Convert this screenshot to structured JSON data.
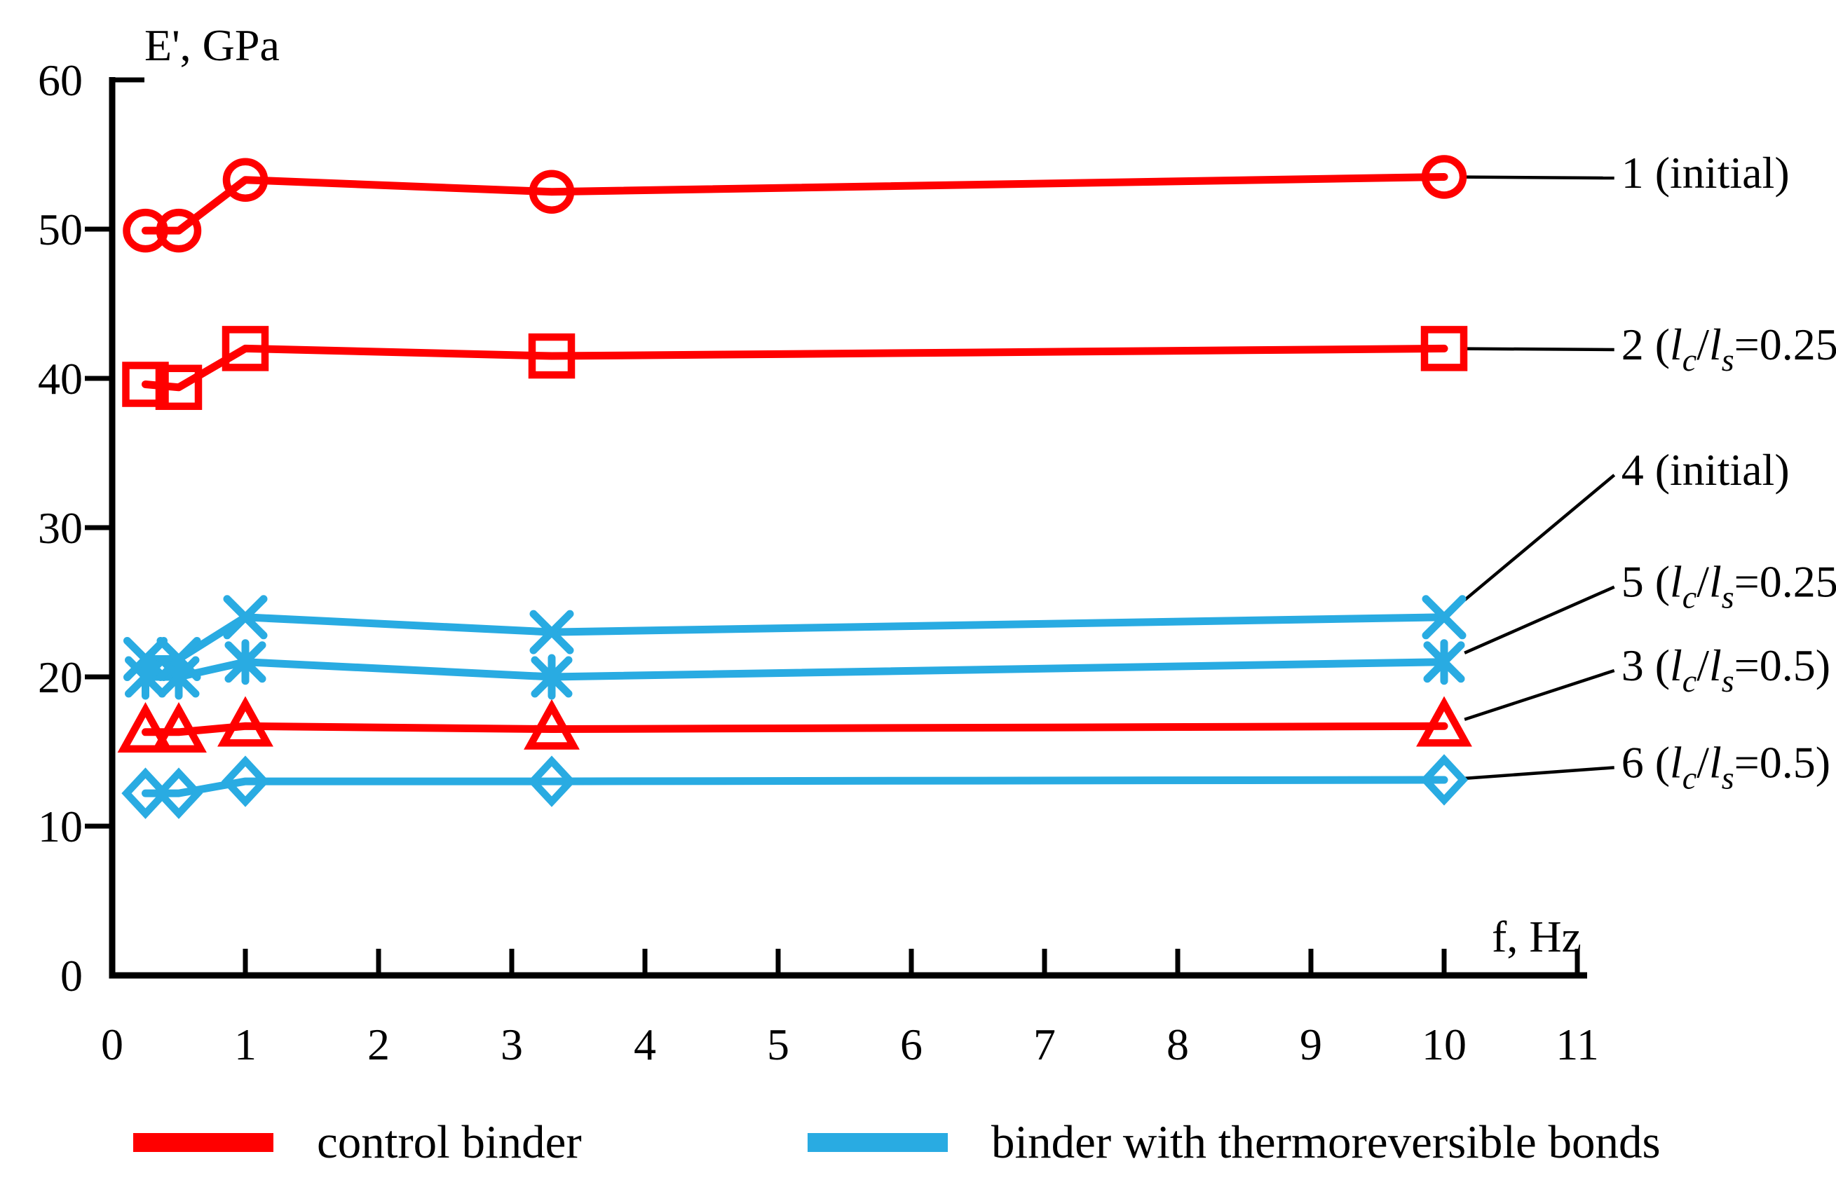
{
  "chart_data": {
    "type": "line",
    "title": "",
    "xlabel": "f, Hz",
    "ylabel": "E', GPa",
    "xlim": [
      0,
      11
    ],
    "ylim": [
      0,
      60
    ],
    "x_ticks": [
      0,
      1,
      2,
      3,
      4,
      5,
      6,
      7,
      8,
      9,
      10,
      11
    ],
    "y_ticks": [
      0,
      10,
      20,
      30,
      40,
      50,
      60
    ],
    "grid": false,
    "x": [
      0.25,
      0.5,
      1,
      3.3,
      10
    ],
    "series": [
      {
        "id": "1",
        "name": "1 (initial)",
        "group": "control binder",
        "color": "#FF0000",
        "marker": "circle",
        "values": [
          49.9,
          49.9,
          53.3,
          52.5,
          53.5
        ]
      },
      {
        "id": "2",
        "name": "2 (lc/ls=0.25)",
        "group": "control binder",
        "color": "#FF0000",
        "marker": "square",
        "values": [
          39.6,
          39.4,
          42.0,
          41.5,
          42.0
        ]
      },
      {
        "id": "3",
        "name": "3 (lc/ls=0.5)",
        "group": "control binder",
        "color": "#FF0000",
        "marker": "triangle",
        "values": [
          16.3,
          16.3,
          16.7,
          16.5,
          16.7
        ]
      },
      {
        "id": "4",
        "name": "4 (initial)",
        "group": "binder with thermoreversible bonds",
        "color": "#29ABE2",
        "marker": "x",
        "values": [
          21.2,
          21.2,
          24.0,
          23.0,
          24.0
        ]
      },
      {
        "id": "5",
        "name": "5 (lc/ls=0.25)",
        "group": "binder with thermoreversible bonds",
        "color": "#29ABE2",
        "marker": "asterisk",
        "values": [
          20.0,
          20.0,
          21.0,
          20.0,
          21.0
        ]
      },
      {
        "id": "6",
        "name": "6 (lc/ls=0.5)",
        "group": "binder with thermoreversible bonds",
        "color": "#29ABE2",
        "marker": "diamond",
        "values": [
          12.2,
          12.2,
          13.0,
          13.0,
          13.1
        ]
      }
    ],
    "annotations": [
      {
        "series": "1",
        "x": 11.33,
        "y": 53.8,
        "segments": [
          {
            "t": "1 (initial)"
          }
        ]
      },
      {
        "series": "2",
        "x": 11.33,
        "y": 42.3,
        "segments": [
          {
            "t": "2 ("
          },
          {
            "t": "l",
            "i": 1
          },
          {
            "t": "c",
            "i": 1,
            "s": 1
          },
          {
            "t": "/"
          },
          {
            "t": "l",
            "i": 1
          },
          {
            "t": "s",
            "i": 1,
            "s": 1
          },
          {
            "t": "=0.25)"
          }
        ]
      },
      {
        "series": "4",
        "x": 11.33,
        "y": 33.9,
        "segments": [
          {
            "t": "4 (initial)"
          }
        ]
      },
      {
        "series": "5",
        "x": 11.33,
        "y": 26.4,
        "segments": [
          {
            "t": "5 ("
          },
          {
            "t": "l",
            "i": 1
          },
          {
            "t": "c",
            "i": 1,
            "s": 1
          },
          {
            "t": "/"
          },
          {
            "t": "l",
            "i": 1
          },
          {
            "t": "s",
            "i": 1,
            "s": 1
          },
          {
            "t": "=0.25)"
          }
        ]
      },
      {
        "series": "3",
        "x": 11.33,
        "y": 20.8,
        "segments": [
          {
            "t": "3 ("
          },
          {
            "t": "l",
            "i": 1
          },
          {
            "t": "c",
            "i": 1,
            "s": 1
          },
          {
            "t": "/"
          },
          {
            "t": "l",
            "i": 1
          },
          {
            "t": "s",
            "i": 1,
            "s": 1
          },
          {
            "t": "=0.5)"
          }
        ]
      },
      {
        "series": "6",
        "x": 11.33,
        "y": 14.3,
        "segments": [
          {
            "t": "6 ("
          },
          {
            "t": "l",
            "i": 1
          },
          {
            "t": "c",
            "i": 1,
            "s": 1
          },
          {
            "t": "/"
          },
          {
            "t": "l",
            "i": 1
          },
          {
            "t": "s",
            "i": 1,
            "s": 1
          },
          {
            "t": "=0.5)"
          }
        ]
      }
    ],
    "legend": {
      "position": "bottom",
      "items": [
        {
          "label": "control binder",
          "color": "#FF0000"
        },
        {
          "label": "binder with thermoreversible bonds",
          "color": "#29ABE2"
        }
      ]
    }
  },
  "colors": {
    "axis": "#000000",
    "leader": "#000000",
    "control": "#FF0000",
    "thermoreversible": "#29ABE2"
  }
}
